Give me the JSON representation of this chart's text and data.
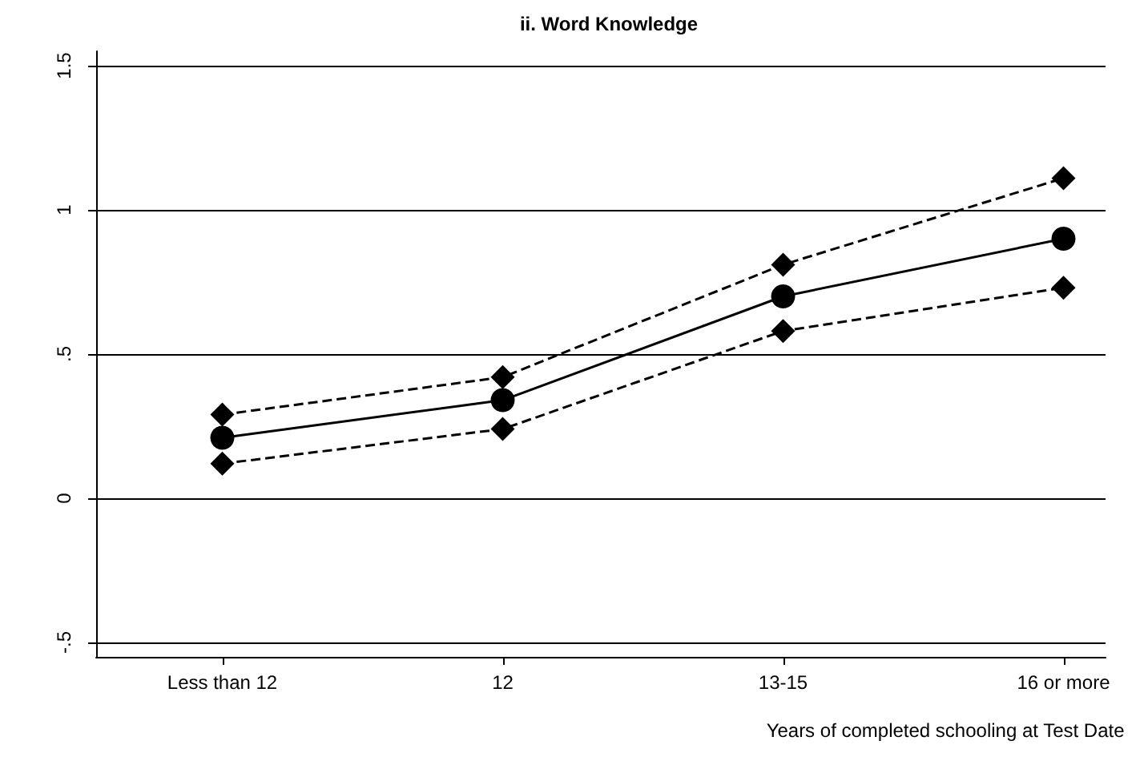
{
  "chart_data": {
    "type": "line",
    "title": "ii. Word Knowledge",
    "xlabel": "Years of completed schooling at Test Date",
    "categories": [
      "Less than 12",
      "12",
      "13-15",
      "16 or more"
    ],
    "ylim": [
      -0.55,
      1.55
    ],
    "yticks": [
      {
        "value": -0.5,
        "label": "-.5"
      },
      {
        "value": 0,
        "label": "0"
      },
      {
        "value": 0.5,
        "label": ".5"
      },
      {
        "value": 1,
        "label": "1"
      },
      {
        "value": 1.5,
        "label": "1.5"
      }
    ],
    "grid": "y",
    "series": [
      {
        "color": "#000000",
        "values": [
          0.29,
          0.42,
          0.81,
          1.11
        ],
        "marker": "diamond",
        "line_style": "dashed"
      },
      {
        "color": "#000000",
        "values": [
          0.21,
          0.34,
          0.7,
          0.9
        ],
        "marker": "circle",
        "line_style": "solid"
      },
      {
        "color": "#000000",
        "values": [
          0.12,
          0.24,
          0.58,
          0.73
        ],
        "marker": "diamond",
        "line_style": "dashed"
      }
    ]
  }
}
